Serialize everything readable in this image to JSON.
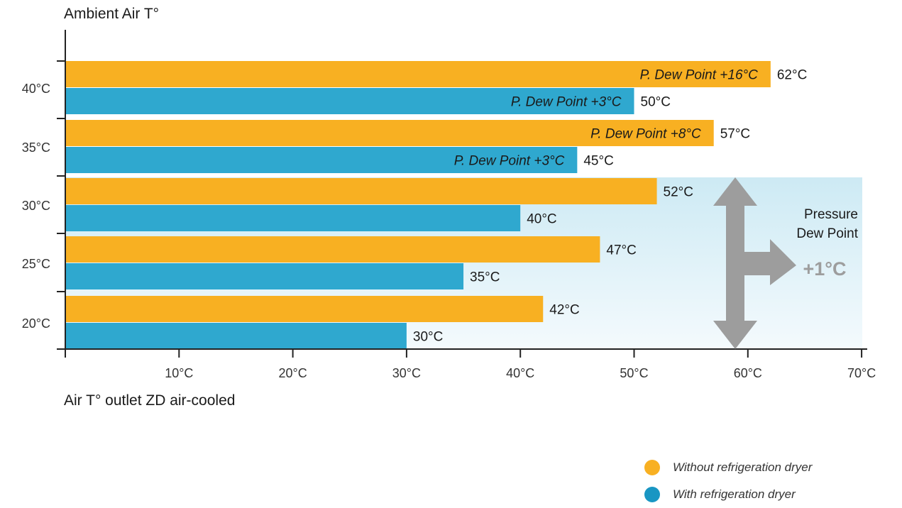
{
  "chart_data": {
    "type": "bar",
    "orientation": "horizontal",
    "ylabel": "Ambient Air T°",
    "xlabel": "Air T° outlet ZD air-cooled",
    "categories": [
      "40°C",
      "35°C",
      "30°C",
      "25°C",
      "20°C"
    ],
    "x_ticks": [
      "10°C",
      "20°C",
      "30°C",
      "40°C",
      "50°C",
      "60°C",
      "70°C"
    ],
    "xlim": [
      0,
      70
    ],
    "series": [
      {
        "name": "Without refrigeration dryer",
        "color": "#f8b022",
        "values": [
          62,
          57,
          52,
          47,
          42
        ],
        "value_labels": [
          "62°C",
          "57°C",
          "52°C",
          "47°C",
          "42°C"
        ],
        "inner_labels": [
          "P. Dew Point +16°C",
          "P. Dew Point +8°C",
          "",
          "",
          ""
        ]
      },
      {
        "name": "With refrigeration dryer",
        "color": "#2fa8cf",
        "values": [
          50,
          45,
          40,
          35,
          30
        ],
        "value_labels": [
          "50°C",
          "45°C",
          "40°C",
          "35°C",
          "30°C"
        ],
        "inner_labels": [
          "P. Dew Point +3°C",
          "P. Dew Point +3°C",
          "",
          "",
          ""
        ]
      }
    ],
    "annotation": {
      "text_line1": "Pressure",
      "text_line2": "Dew Point",
      "value": "+1°C",
      "applies_to": [
        "30°C",
        "25°C",
        "20°C"
      ],
      "shade_color": "#cdeaf4",
      "arrow_color": "#9d9d9d"
    },
    "legend_position": "bottom-right",
    "grid": false
  }
}
